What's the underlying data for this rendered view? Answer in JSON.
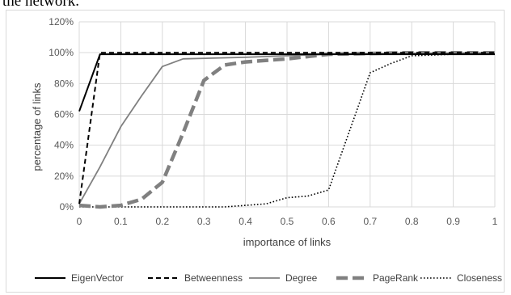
{
  "header_text": "the network.",
  "chart_data": {
    "type": "line",
    "xlabel": "importance of links",
    "ylabel": "percentage of links",
    "xlim": [
      0,
      1
    ],
    "ylim": [
      0,
      120
    ],
    "x_ticks": [
      "0",
      "0.1",
      "0.2",
      "0.3",
      "0.4",
      "0.5",
      "0.6",
      "0.7",
      "0.8",
      "0.9",
      "1"
    ],
    "y_ticks": [
      "0%",
      "20%",
      "40%",
      "60%",
      "80%",
      "100%",
      "120%"
    ],
    "grid": "vertical and horizontal",
    "legend_position": "bottom",
    "series": [
      {
        "name": "EigenVector",
        "color": "#000000",
        "style": "solid",
        "points": [
          [
            0,
            62
          ],
          [
            0.05,
            99
          ],
          [
            1,
            99
          ]
        ]
      },
      {
        "name": "Betweenness",
        "color": "#000000",
        "style": "dashed",
        "points": [
          [
            0,
            2
          ],
          [
            0.05,
            100
          ],
          [
            1,
            100
          ]
        ]
      },
      {
        "name": "Degree",
        "color": "#808080",
        "style": "solid",
        "points": [
          [
            0,
            2
          ],
          [
            0.05,
            26
          ],
          [
            0.1,
            52
          ],
          [
            0.15,
            72
          ],
          [
            0.2,
            91
          ],
          [
            0.25,
            96
          ],
          [
            0.4,
            97
          ],
          [
            0.6,
            99
          ],
          [
            1,
            100
          ]
        ]
      },
      {
        "name": "PageRank",
        "color": "#808080",
        "style": "long-dash",
        "points": [
          [
            0,
            1
          ],
          [
            0.05,
            0
          ],
          [
            0.1,
            1
          ],
          [
            0.15,
            5
          ],
          [
            0.2,
            16
          ],
          [
            0.25,
            48
          ],
          [
            0.3,
            82
          ],
          [
            0.35,
            92
          ],
          [
            0.4,
            94
          ],
          [
            0.5,
            96
          ],
          [
            0.6,
            99
          ],
          [
            0.8,
            100
          ],
          [
            1,
            100
          ]
        ]
      },
      {
        "name": "Closeness",
        "color": "#000000",
        "style": "dotted",
        "points": [
          [
            0,
            0
          ],
          [
            0.35,
            0
          ],
          [
            0.45,
            2
          ],
          [
            0.5,
            6
          ],
          [
            0.55,
            7
          ],
          [
            0.6,
            11
          ],
          [
            0.7,
            87
          ],
          [
            0.75,
            93
          ],
          [
            0.8,
            98
          ],
          [
            0.9,
            99
          ],
          [
            1,
            99
          ]
        ]
      }
    ]
  }
}
